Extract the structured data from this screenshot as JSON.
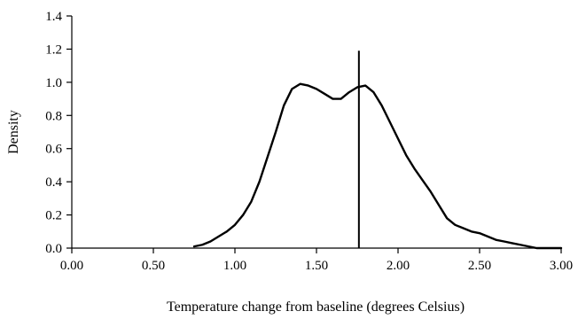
{
  "chart_data": {
    "type": "line",
    "title": "",
    "xlabel": "Temperature change from baseline (degrees Celsius)",
    "ylabel": "Density",
    "xlim": [
      0,
      3
    ],
    "ylim": [
      0,
      1.4
    ],
    "x_ticks": [
      "0.00",
      "0.50",
      "1.00",
      "1.50",
      "2.00",
      "2.50",
      "3.00"
    ],
    "y_ticks": [
      "0.0",
      "0.2",
      "0.4",
      "0.6",
      "0.8",
      "1.0",
      "1.2",
      "1.4"
    ],
    "grid": false,
    "series": [
      {
        "x": [
          0.75,
          0.8,
          0.85,
          0.9,
          0.95,
          1.0,
          1.05,
          1.1,
          1.15,
          1.2,
          1.25,
          1.3,
          1.35,
          1.4,
          1.45,
          1.5,
          1.55,
          1.6,
          1.65,
          1.7,
          1.75,
          1.8,
          1.85,
          1.9,
          1.95,
          2.0,
          2.05,
          2.1,
          2.15,
          2.2,
          2.25,
          2.3,
          2.35,
          2.4,
          2.45,
          2.5,
          2.55,
          2.6,
          2.65,
          2.7,
          2.75,
          2.8,
          2.85,
          2.9,
          2.95,
          3.0
        ],
        "y": [
          0.01,
          0.02,
          0.04,
          0.07,
          0.1,
          0.14,
          0.2,
          0.28,
          0.4,
          0.55,
          0.7,
          0.86,
          0.96,
          0.99,
          0.98,
          0.96,
          0.93,
          0.9,
          0.9,
          0.94,
          0.97,
          0.98,
          0.94,
          0.86,
          0.76,
          0.66,
          0.56,
          0.48,
          0.41,
          0.34,
          0.26,
          0.18,
          0.14,
          0.12,
          0.1,
          0.09,
          0.07,
          0.05,
          0.04,
          0.03,
          0.02,
          0.01,
          0.0,
          0.0,
          0.0,
          0.0
        ]
      }
    ],
    "vertical_line": {
      "x": 1.76,
      "y_top": 1.19
    }
  }
}
